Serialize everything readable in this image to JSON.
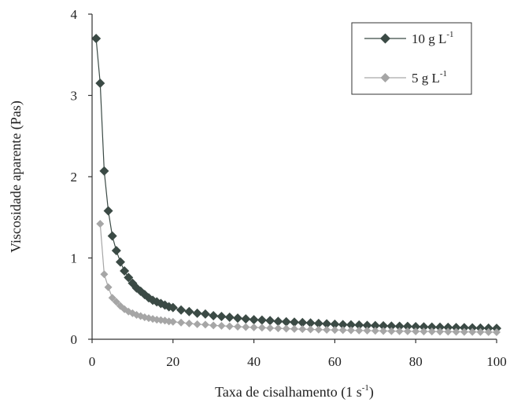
{
  "chart_data": {
    "type": "scatter",
    "xlabel": "Taxa de cisalhamento (1 s",
    "xlabel_sup": "-1",
    "xlabel_close": ")",
    "ylabel": "Viscosidade aparente (Pas)",
    "xlim": [
      0,
      100
    ],
    "ylim": [
      0,
      4
    ],
    "x_ticks": [
      "0",
      "20",
      "40",
      "60",
      "80",
      "100"
    ],
    "y_ticks": [
      "0",
      "1",
      "2",
      "3",
      "4"
    ],
    "grid": false,
    "legend_position": "top-right",
    "series": [
      {
        "name": "10 g L",
        "name_sup": "-1",
        "color": "#3b4a45",
        "points": [
          [
            1,
            3.7
          ],
          [
            2,
            3.15
          ],
          [
            3,
            2.07
          ],
          [
            4,
            1.58
          ],
          [
            5,
            1.27
          ],
          [
            6,
            1.09
          ],
          [
            7,
            0.95
          ],
          [
            8,
            0.84
          ],
          [
            9,
            0.76
          ],
          [
            10,
            0.69
          ],
          [
            11,
            0.63
          ],
          [
            12,
            0.59
          ],
          [
            13,
            0.55
          ],
          [
            14,
            0.51
          ],
          [
            15,
            0.48
          ],
          [
            16,
            0.46
          ],
          [
            17,
            0.44
          ],
          [
            18,
            0.42
          ],
          [
            19,
            0.4
          ],
          [
            20,
            0.39
          ],
          [
            22,
            0.36
          ],
          [
            24,
            0.34
          ],
          [
            26,
            0.32
          ],
          [
            28,
            0.31
          ],
          [
            30,
            0.29
          ],
          [
            32,
            0.28
          ],
          [
            34,
            0.27
          ],
          [
            36,
            0.26
          ],
          [
            38,
            0.25
          ],
          [
            40,
            0.24
          ],
          [
            42,
            0.235
          ],
          [
            44,
            0.23
          ],
          [
            46,
            0.22
          ],
          [
            48,
            0.215
          ],
          [
            50,
            0.21
          ],
          [
            52,
            0.205
          ],
          [
            54,
            0.2
          ],
          [
            56,
            0.195
          ],
          [
            58,
            0.19
          ],
          [
            60,
            0.185
          ],
          [
            62,
            0.18
          ],
          [
            64,
            0.178
          ],
          [
            66,
            0.175
          ],
          [
            68,
            0.17
          ],
          [
            70,
            0.168
          ],
          [
            72,
            0.165
          ],
          [
            74,
            0.162
          ],
          [
            76,
            0.16
          ],
          [
            78,
            0.158
          ],
          [
            80,
            0.155
          ],
          [
            82,
            0.152
          ],
          [
            84,
            0.15
          ],
          [
            86,
            0.148
          ],
          [
            88,
            0.146
          ],
          [
            90,
            0.144
          ],
          [
            92,
            0.142
          ],
          [
            94,
            0.14
          ],
          [
            96,
            0.138
          ],
          [
            98,
            0.136
          ],
          [
            100,
            0.134
          ]
        ]
      },
      {
        "name": "5 g L",
        "name_sup": "-1",
        "color": "#a6a6a6",
        "points": [
          [
            2,
            1.42
          ],
          [
            3,
            0.8
          ],
          [
            4,
            0.64
          ],
          [
            5,
            0.51
          ],
          [
            6,
            0.46
          ],
          [
            7,
            0.41
          ],
          [
            8,
            0.37
          ],
          [
            9,
            0.34
          ],
          [
            10,
            0.32
          ],
          [
            11,
            0.3
          ],
          [
            12,
            0.285
          ],
          [
            13,
            0.27
          ],
          [
            14,
            0.26
          ],
          [
            15,
            0.25
          ],
          [
            16,
            0.24
          ],
          [
            17,
            0.235
          ],
          [
            18,
            0.23
          ],
          [
            19,
            0.22
          ],
          [
            20,
            0.215
          ],
          [
            22,
            0.205
          ],
          [
            24,
            0.195
          ],
          [
            26,
            0.185
          ],
          [
            28,
            0.18
          ],
          [
            30,
            0.17
          ],
          [
            32,
            0.165
          ],
          [
            34,
            0.16
          ],
          [
            36,
            0.155
          ],
          [
            38,
            0.15
          ],
          [
            40,
            0.146
          ],
          [
            42,
            0.142
          ],
          [
            44,
            0.138
          ],
          [
            46,
            0.134
          ],
          [
            48,
            0.13
          ],
          [
            50,
            0.127
          ],
          [
            52,
            0.124
          ],
          [
            54,
            0.121
          ],
          [
            56,
            0.118
          ],
          [
            58,
            0.116
          ],
          [
            60,
            0.114
          ],
          [
            62,
            0.112
          ],
          [
            64,
            0.11
          ],
          [
            66,
            0.108
          ],
          [
            68,
            0.106
          ],
          [
            70,
            0.104
          ],
          [
            72,
            0.102
          ],
          [
            74,
            0.1
          ],
          [
            76,
            0.099
          ],
          [
            78,
            0.098
          ],
          [
            80,
            0.097
          ],
          [
            82,
            0.096
          ],
          [
            84,
            0.095
          ],
          [
            86,
            0.094
          ],
          [
            88,
            0.093
          ],
          [
            90,
            0.092
          ],
          [
            92,
            0.091
          ],
          [
            94,
            0.09
          ],
          [
            96,
            0.089
          ],
          [
            98,
            0.088
          ],
          [
            100,
            0.087
          ]
        ]
      }
    ]
  }
}
